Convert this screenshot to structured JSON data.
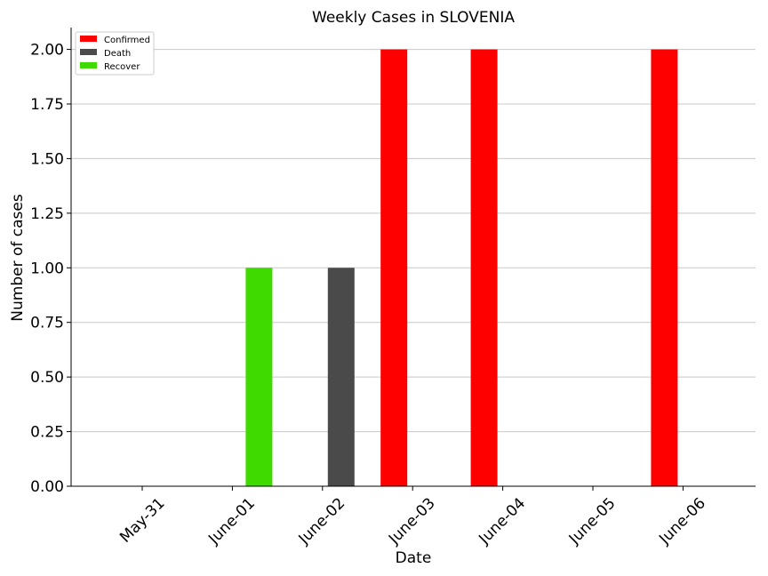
{
  "chart_data": {
    "type": "bar",
    "title": "Weekly Cases in SLOVENIA",
    "xlabel": "Date",
    "ylabel": "Number of cases",
    "categories": [
      "May-31",
      "June-01",
      "June-02",
      "June-03",
      "June-04",
      "June-05",
      "June-06"
    ],
    "series": [
      {
        "name": "Confirmed",
        "color": "#ff0000",
        "values": [
          0,
          0,
          0,
          2,
          2,
          0,
          2
        ]
      },
      {
        "name": "Death",
        "color": "#4a4a4a",
        "values": [
          0,
          0,
          1,
          0,
          0,
          0,
          0
        ]
      },
      {
        "name": "Recover",
        "color": "#3fdb00",
        "values": [
          0,
          1,
          0,
          0,
          0,
          0,
          0
        ]
      }
    ],
    "ylim": [
      0,
      2.1
    ],
    "yticks": [
      "0.00",
      "0.25",
      "0.50",
      "0.75",
      "1.00",
      "1.25",
      "1.50",
      "1.75",
      "2.00"
    ],
    "grid": "horizontal",
    "legend": "top-left"
  }
}
